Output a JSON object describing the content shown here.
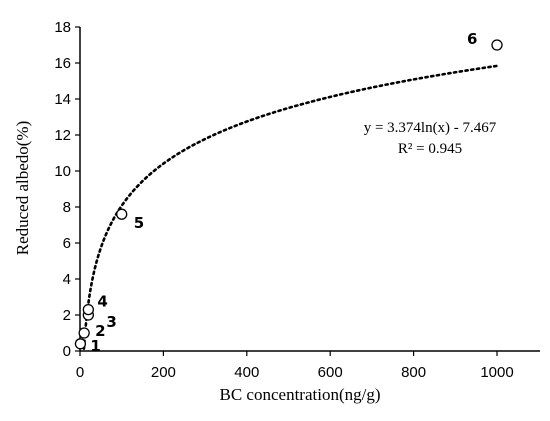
{
  "chart_data": {
    "type": "scatter",
    "xlabel": "BC concentration(ng/g)",
    "ylabel": "Reduced albedo(%)",
    "xlim": [
      0,
      1000
    ],
    "ylim": [
      0,
      18
    ],
    "x_ticks": [
      0,
      200,
      400,
      600,
      800,
      1000
    ],
    "y_ticks": [
      0,
      2,
      4,
      6,
      8,
      10,
      12,
      14,
      16,
      18
    ],
    "grid": false,
    "legend": "none",
    "points": [
      {
        "label": "1",
        "x": 1,
        "y": 0.4
      },
      {
        "label": "2",
        "x": 10,
        "y": 1.0
      },
      {
        "label": "3",
        "x": 20,
        "y": 2.0
      },
      {
        "label": "4",
        "x": 20,
        "y": 2.3
      },
      {
        "label": "5",
        "x": 100,
        "y": 7.6
      },
      {
        "label": "6",
        "x": 1000,
        "y": 17.0
      }
    ],
    "trendline": {
      "type": "logarithmic",
      "a": 3.374,
      "b": -7.467,
      "x_range": [
        9.5,
        1000
      ],
      "equation_text": "y = 3.374ln(x) - 7.467",
      "r_squared_text": "R² = 0.945"
    }
  }
}
